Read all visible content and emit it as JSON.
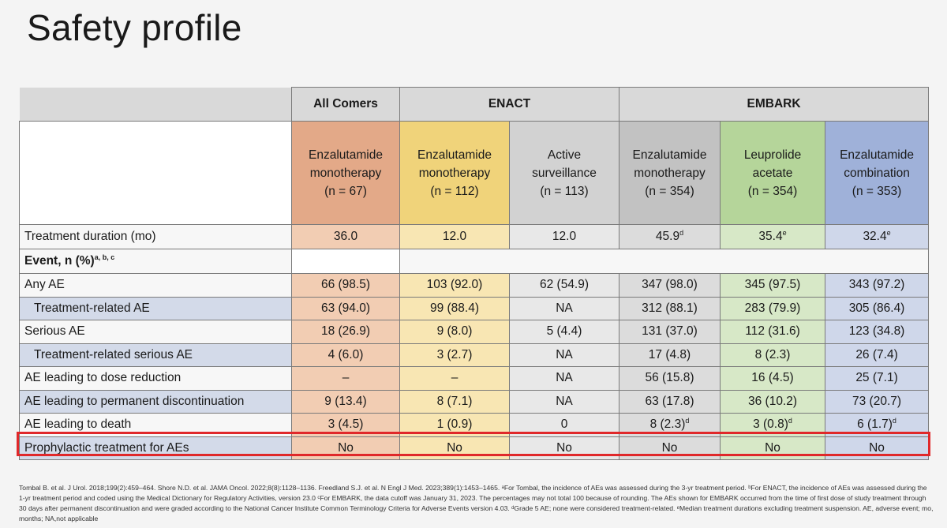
{
  "title": "Safety profile",
  "groups": [
    "All Comers",
    "ENACT",
    "EMBARK"
  ],
  "arms": [
    {
      "line1": "Enzalutamide",
      "line2": "monotherapy",
      "n": "(n = 67)",
      "color": "#e3a988"
    },
    {
      "line1": "Enzalutamide",
      "line2": "monotherapy",
      "n": "(n = 112)",
      "color": "#f0d37a"
    },
    {
      "line1": "Active",
      "line2": "surveillance",
      "n": "(n = 113)",
      "color": "#d2d2d2"
    },
    {
      "line1": "Enzalutamide",
      "line2": "monotherapy",
      "n": "(n = 354)",
      "color": "#c2c2c2"
    },
    {
      "line1": "Leuprolide",
      "line2": "acetate",
      "n": "(n = 354)",
      "color": "#b5d59a"
    },
    {
      "line1": "Enzalutamide",
      "line2": "combination",
      "n": "(n = 353)",
      "color": "#9fb1d9"
    }
  ],
  "duration": {
    "label": "Treatment duration (mo)",
    "values": [
      "36.0",
      "12.0",
      "12.0",
      "45.9",
      "35.4",
      "32.4"
    ],
    "sups": [
      "",
      "",
      "",
      "d",
      "e",
      "e"
    ]
  },
  "event_header": {
    "label": "Event, n (%)",
    "sup": "a, b, c"
  },
  "rows": [
    {
      "label": "Any AE",
      "values": [
        "66 (98.5)",
        "103 (92.0)",
        "62 (54.9)",
        "347 (98.0)",
        "345 (97.5)",
        "343 (97.2)"
      ],
      "sups": [
        "",
        "",
        "",
        "",
        "",
        ""
      ]
    },
    {
      "label": "Treatment-related AE",
      "values": [
        "63 (94.0)",
        "99 (88.4)",
        "NA",
        "312 (88.1)",
        "283 (79.9)",
        "305 (86.4)"
      ],
      "sups": [
        "",
        "",
        "",
        "",
        "",
        ""
      ]
    },
    {
      "label": "Serious AE",
      "values": [
        "18 (26.9)",
        "9 (8.0)",
        "5 (4.4)",
        "131 (37.0)",
        "112 (31.6)",
        "123 (34.8)"
      ],
      "sups": [
        "",
        "",
        "",
        "",
        "",
        ""
      ]
    },
    {
      "label": "Treatment-related serious AE",
      "values": [
        "4 (6.0)",
        "3 (2.7)",
        "NA",
        "17 (4.8)",
        "8 (2.3)",
        "26 (7.4)"
      ],
      "sups": [
        "",
        "",
        "",
        "",
        "",
        ""
      ]
    },
    {
      "label": "AE leading to dose reduction",
      "values": [
        "–",
        "–",
        "NA",
        "56 (15.8)",
        "16 (4.5)",
        "25 (7.1)"
      ],
      "sups": [
        "",
        "",
        "",
        "",
        "",
        ""
      ]
    },
    {
      "label": "AE leading to permanent discontinuation",
      "values": [
        "9 (13.4)",
        "8 (7.1)",
        "NA",
        "63 (17.8)",
        "36 (10.2)",
        "73 (20.7)"
      ],
      "sups": [
        "",
        "",
        "",
        "",
        "",
        ""
      ]
    },
    {
      "label": "AE leading to death",
      "values": [
        "3 (4.5)",
        "1 (0.9)",
        "0",
        "8 (2.3)",
        "3 (0.8)",
        "6 (1.7)"
      ],
      "sups": [
        "",
        "",
        "",
        "d",
        "d",
        "d"
      ]
    },
    {
      "label": "Prophylactic treatment for AEs",
      "values": [
        "No",
        "No",
        "No",
        "No",
        "No",
        "No"
      ],
      "sups": [
        "",
        "",
        "",
        "",
        "",
        ""
      ]
    }
  ],
  "footnote": "Tombal B. et al. J Urol. 2018;199(2):459–464. Shore N.D. et al. JAMA Oncol. 2022;8(8):1128–1136. Freedland S.J. et al. N Engl J Med. 2023;389(1):1453–1465. ᵃFor Tombal, the incidence of AEs was assessed during the 3-yr treatment period. ᵇFor ENACT, the incidence of AEs was assessed during the 1-yr treatment period and coded using the Medical Dictionary for Regulatory Activities, version 23.0 ᶜFor EMBARK, the data cutoff was January 31, 2023. The percentages may not total 100 because of rounding. The AEs shown for EMBARK occurred from the time of first dose of study treatment through 30 days after permanent discontinuation and were graded according to the National Cancer Institute Common Terminology Criteria for Adverse Events version 4.03. ᵈGrade 5 AE; none were considered treatment-related. ᵉMedian treatment durations excluding treatment suspension. AE, adverse event; mo, months; NA,not applicable"
}
